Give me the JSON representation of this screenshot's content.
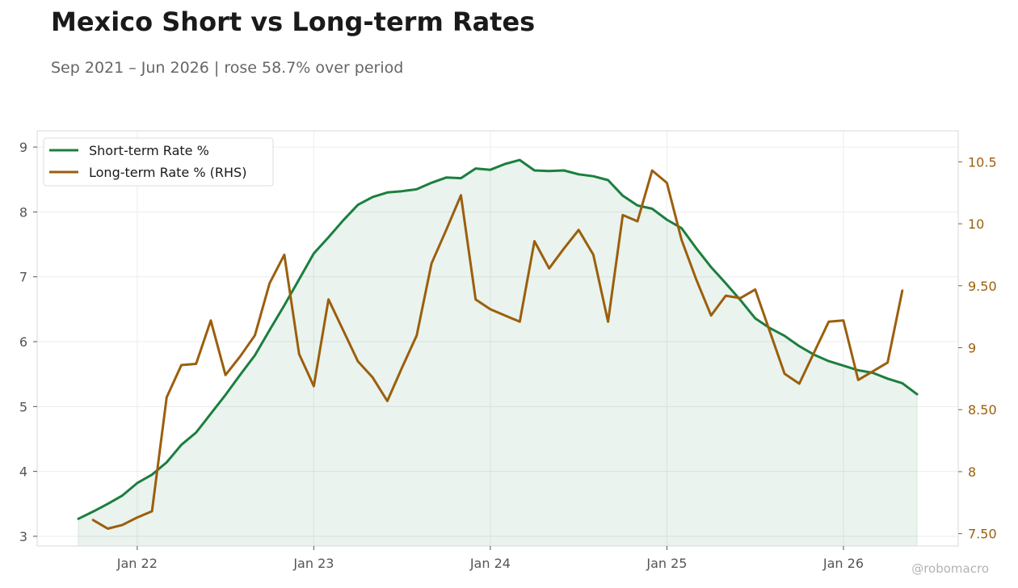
{
  "title": "Mexico Short vs Long-term Rates",
  "subtitle": "Sep 2021 – Jun 2026 | rose 58.7% over period",
  "watermark": "@robomacro",
  "chart_data": {
    "type": "line",
    "x_start": "2021-09",
    "x_end": "2026-06",
    "x_ticks": [
      {
        "date": "2022-01",
        "label": "Jan 22"
      },
      {
        "date": "2023-01",
        "label": "Jan 23"
      },
      {
        "date": "2024-01",
        "label": "Jan 24"
      },
      {
        "date": "2025-01",
        "label": "Jan 25"
      },
      {
        "date": "2026-01",
        "label": "Jan 26"
      }
    ],
    "y_left": {
      "range": [
        2.85,
        9.25
      ],
      "ticks": [
        3,
        4,
        5,
        6,
        7,
        8,
        9
      ],
      "tick_labels": [
        "3",
        "4",
        "5",
        "6",
        "7",
        "8",
        "9"
      ]
    },
    "y_right": {
      "range": [
        7.4,
        10.75
      ],
      "ticks": [
        7.5,
        8,
        8.5,
        9,
        9.5,
        10,
        10.5
      ],
      "tick_labels": [
        "7.50",
        "8",
        "8.50",
        "9",
        "9.50",
        "10",
        "10.5"
      ]
    },
    "grid": true,
    "legend_position": "top-left",
    "colors": {
      "short": "#1b7f3e",
      "long": "#9b5f0d",
      "fill": "#1b7f3e",
      "left_axis": "#555555",
      "right_axis": "#9b5f0d"
    },
    "series": [
      {
        "name": "Short-term Rate %",
        "axis": "left",
        "fill": true,
        "points": [
          [
            "2021-09",
            3.27
          ],
          [
            "2021-10",
            3.38
          ],
          [
            "2021-11",
            3.5
          ],
          [
            "2021-12",
            3.63
          ],
          [
            "2022-01",
            3.82
          ],
          [
            "2022-02",
            3.95
          ],
          [
            "2022-03",
            4.14
          ],
          [
            "2022-04",
            4.41
          ],
          [
            "2022-05",
            4.6
          ],
          [
            "2022-06",
            4.89
          ],
          [
            "2022-07",
            5.18
          ],
          [
            "2022-08",
            5.49
          ],
          [
            "2022-09",
            5.79
          ],
          [
            "2022-10",
            6.18
          ],
          [
            "2022-11",
            6.56
          ],
          [
            "2022-12",
            6.96
          ],
          [
            "2023-01",
            7.36
          ],
          [
            "2023-02",
            7.61
          ],
          [
            "2023-03",
            7.87
          ],
          [
            "2023-04",
            8.11
          ],
          [
            "2023-05",
            8.23
          ],
          [
            "2023-06",
            8.3
          ],
          [
            "2023-07",
            8.32
          ],
          [
            "2023-08",
            8.35
          ],
          [
            "2023-09",
            8.45
          ],
          [
            "2023-10",
            8.53
          ],
          [
            "2023-11",
            8.52
          ],
          [
            "2023-12",
            8.67
          ],
          [
            "2024-01",
            8.65
          ],
          [
            "2024-02",
            8.74
          ],
          [
            "2024-03",
            8.8
          ],
          [
            "2024-04",
            8.64
          ],
          [
            "2024-05",
            8.63
          ],
          [
            "2024-06",
            8.64
          ],
          [
            "2024-07",
            8.58
          ],
          [
            "2024-08",
            8.55
          ],
          [
            "2024-09",
            8.49
          ],
          [
            "2024-10",
            8.25
          ],
          [
            "2024-11",
            8.1
          ],
          [
            "2024-12",
            8.05
          ],
          [
            "2025-01",
            7.88
          ],
          [
            "2025-02",
            7.75
          ],
          [
            "2025-03",
            7.44
          ],
          [
            "2025-04",
            7.15
          ],
          [
            "2025-05",
            6.9
          ],
          [
            "2025-06",
            6.64
          ],
          [
            "2025-07",
            6.36
          ],
          [
            "2025-08",
            6.21
          ],
          [
            "2025-09",
            6.09
          ],
          [
            "2025-10",
            5.93
          ],
          [
            "2025-11",
            5.8
          ],
          [
            "2025-12",
            5.7
          ],
          [
            "2026-01",
            5.63
          ],
          [
            "2026-02",
            5.56
          ],
          [
            "2026-03",
            5.52
          ],
          [
            "2026-04",
            5.43
          ],
          [
            "2026-05",
            5.36
          ],
          [
            "2026-06",
            5.19
          ]
        ]
      },
      {
        "name": "Long-term Rate % (RHS)",
        "axis": "right",
        "fill": false,
        "points": [
          [
            "2021-10",
            7.61
          ],
          [
            "2021-11",
            7.54
          ],
          [
            "2021-12",
            7.57
          ],
          [
            "2022-01",
            7.63
          ],
          [
            "2022-02",
            7.68
          ],
          [
            "2022-03",
            8.6
          ],
          [
            "2022-04",
            8.86
          ],
          [
            "2022-05",
            8.87
          ],
          [
            "2022-06",
            9.22
          ],
          [
            "2022-07",
            8.78
          ],
          [
            "2022-08",
            8.93
          ],
          [
            "2022-09",
            9.1
          ],
          [
            "2022-10",
            9.52
          ],
          [
            "2022-11",
            9.75
          ],
          [
            "2022-12",
            8.95
          ],
          [
            "2023-01",
            8.69
          ],
          [
            "2023-02",
            9.39
          ],
          [
            "2023-03",
            9.14
          ],
          [
            "2023-04",
            8.89
          ],
          [
            "2023-05",
            8.76
          ],
          [
            "2023-06",
            8.57
          ],
          [
            "2023-07",
            8.84
          ],
          [
            "2023-08",
            9.1
          ],
          [
            "2023-09",
            9.68
          ],
          [
            "2023-10",
            9.95
          ],
          [
            "2023-11",
            10.23
          ],
          [
            "2023-12",
            9.39
          ],
          [
            "2024-01",
            9.31
          ],
          [
            "2024-02",
            9.26
          ],
          [
            "2024-03",
            9.21
          ],
          [
            "2024-04",
            9.86
          ],
          [
            "2024-05",
            9.64
          ],
          [
            "2024-06",
            9.8
          ],
          [
            "2024-07",
            9.95
          ],
          [
            "2024-08",
            9.75
          ],
          [
            "2024-09",
            9.21
          ],
          [
            "2024-10",
            10.07
          ],
          [
            "2024-11",
            10.02
          ],
          [
            "2024-12",
            10.43
          ],
          [
            "2025-01",
            10.33
          ],
          [
            "2025-02",
            9.87
          ],
          [
            "2025-03",
            9.55
          ],
          [
            "2025-04",
            9.26
          ],
          [
            "2025-05",
            9.42
          ],
          [
            "2025-06",
            9.4
          ],
          [
            "2025-07",
            9.47
          ],
          [
            "2025-08",
            9.13
          ],
          [
            "2025-09",
            8.79
          ],
          [
            "2025-10",
            8.71
          ],
          [
            "2025-11",
            8.96
          ],
          [
            "2025-12",
            9.21
          ],
          [
            "2026-01",
            9.22
          ],
          [
            "2026-02",
            8.74
          ],
          [
            "2026-03",
            8.81
          ],
          [
            "2026-04",
            8.88
          ],
          [
            "2026-05",
            9.46
          ]
        ]
      }
    ]
  }
}
